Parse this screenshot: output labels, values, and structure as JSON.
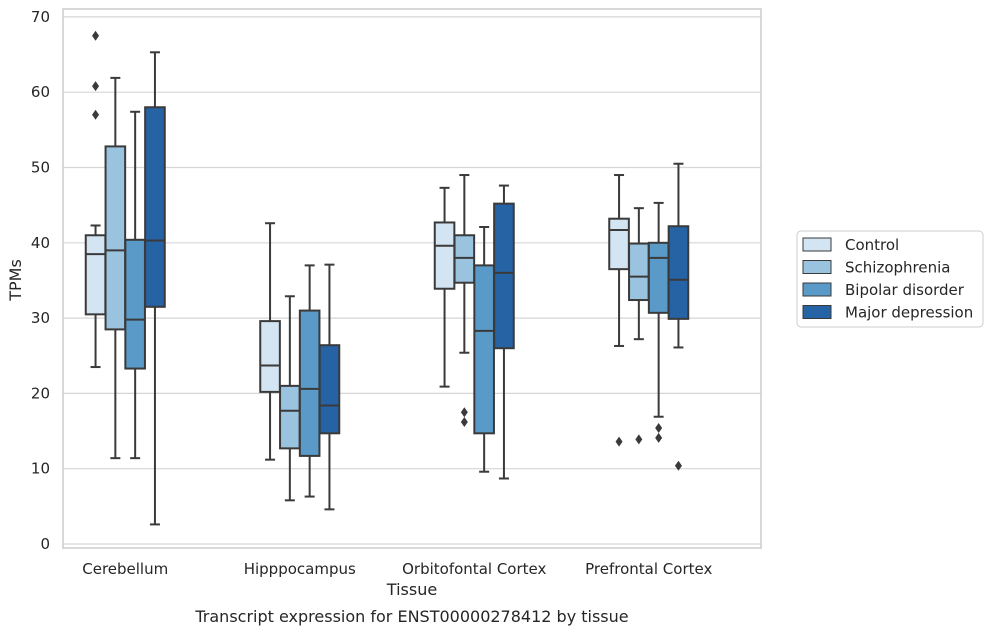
{
  "chart_data": {
    "type": "boxplot",
    "title": "Transcript expression for ENST00000278412 by tissue",
    "xlabel": "Tissue",
    "ylabel": "TPMs",
    "ylim": [
      0,
      70
    ],
    "yticks": [
      0,
      10,
      20,
      30,
      40,
      50,
      60,
      70
    ],
    "grid": "horizontal",
    "legend_position": "right",
    "categories": [
      "Cerebellum",
      "Hipppocampus",
      "Orbitofontal Cortex",
      "Prefrontal Cortex"
    ],
    "series": [
      {
        "name": "Control",
        "color": "#d3e4f3",
        "boxes": [
          {
            "whislo": 23.5,
            "q1": 30.5,
            "med": 38.5,
            "q3": 41.0,
            "whishi": 42.3,
            "fliers": [
              67.5,
              60.8,
              57.0
            ]
          },
          {
            "whislo": 11.2,
            "q1": 20.2,
            "med": 23.7,
            "q3": 29.6,
            "whishi": 42.6,
            "fliers": []
          },
          {
            "whislo": 20.9,
            "q1": 33.9,
            "med": 39.6,
            "q3": 42.7,
            "whishi": 47.3,
            "fliers": []
          },
          {
            "whislo": 26.3,
            "q1": 36.5,
            "med": 41.7,
            "q3": 43.2,
            "whishi": 49.0,
            "fliers": [
              13.6
            ]
          }
        ]
      },
      {
        "name": "Schizophrenia",
        "color": "#9ac3df",
        "boxes": [
          {
            "whislo": 11.4,
            "q1": 28.5,
            "med": 39.0,
            "q3": 52.8,
            "whishi": 61.9,
            "fliers": []
          },
          {
            "whislo": 5.8,
            "q1": 12.7,
            "med": 17.7,
            "q3": 21.0,
            "whishi": 32.9,
            "fliers": []
          },
          {
            "whislo": 25.4,
            "q1": 34.7,
            "med": 38.0,
            "q3": 41.0,
            "whishi": 49.0,
            "fliers": [
              17.5,
              16.2
            ]
          },
          {
            "whislo": 27.2,
            "q1": 32.4,
            "med": 35.5,
            "q3": 39.9,
            "whishi": 44.6,
            "fliers": [
              13.9
            ]
          }
        ]
      },
      {
        "name": "Bipolar disorder",
        "color": "#5a9ac8",
        "boxes": [
          {
            "whislo": 11.4,
            "q1": 23.3,
            "med": 29.8,
            "q3": 40.4,
            "whishi": 57.4,
            "fliers": []
          },
          {
            "whislo": 6.3,
            "q1": 11.7,
            "med": 20.6,
            "q3": 31.0,
            "whishi": 37.0,
            "fliers": []
          },
          {
            "whislo": 9.6,
            "q1": 14.7,
            "med": 28.3,
            "q3": 37.0,
            "whishi": 42.1,
            "fliers": []
          },
          {
            "whislo": 16.9,
            "q1": 30.7,
            "med": 38.0,
            "q3": 40.0,
            "whishi": 45.3,
            "fliers": [
              15.4,
              14.1
            ]
          }
        ]
      },
      {
        "name": "Major depression",
        "color": "#2663a4",
        "boxes": [
          {
            "whislo": 2.6,
            "q1": 31.5,
            "med": 40.3,
            "q3": 58.0,
            "whishi": 65.3,
            "fliers": []
          },
          {
            "whislo": 4.6,
            "q1": 14.7,
            "med": 18.4,
            "q3": 26.4,
            "whishi": 37.1,
            "fliers": []
          },
          {
            "whislo": 8.7,
            "q1": 26.0,
            "med": 36.0,
            "q3": 45.2,
            "whishi": 47.6,
            "fliers": []
          },
          {
            "whislo": 26.1,
            "q1": 29.9,
            "med": 35.1,
            "q3": 42.2,
            "whishi": 50.5,
            "fliers": [
              10.4
            ]
          }
        ]
      }
    ]
  }
}
